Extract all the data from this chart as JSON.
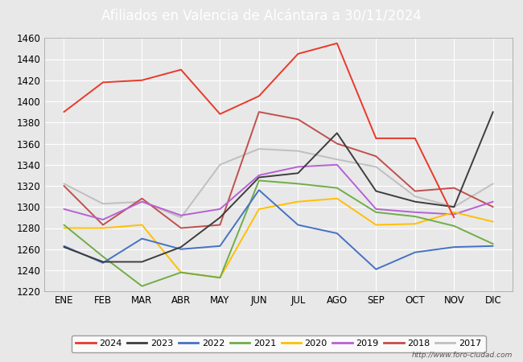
{
  "title": "Afiliados en Valencia de Alcántara a 30/11/2024",
  "title_color": "#ffffff",
  "title_bg_color": "#4472c4",
  "months": [
    "ENE",
    "FEB",
    "MAR",
    "ABR",
    "MAY",
    "JUN",
    "JUL",
    "AGO",
    "SEP",
    "OCT",
    "NOV",
    "DIC"
  ],
  "ylim": [
    1220,
    1460
  ],
  "yticks": [
    1220,
    1240,
    1260,
    1280,
    1300,
    1320,
    1340,
    1360,
    1380,
    1400,
    1420,
    1440,
    1460
  ],
  "series": {
    "2024": {
      "color": "#e8392a",
      "data": [
        1390,
        1418,
        1420,
        1430,
        1388,
        1405,
        1445,
        1455,
        1365,
        1365,
        1290,
        null
      ]
    },
    "2023": {
      "color": "#3d3d3d",
      "data": [
        1262,
        1248,
        1248,
        1262,
        1290,
        1328,
        1332,
        1370,
        1315,
        1305,
        1300,
        1390
      ]
    },
    "2022": {
      "color": "#4472c4",
      "data": [
        1263,
        1247,
        1270,
        1260,
        1263,
        1316,
        1283,
        1275,
        1241,
        1257,
        1262,
        1263
      ]
    },
    "2021": {
      "color": "#70ad47",
      "data": [
        1283,
        1253,
        1225,
        1238,
        1233,
        1325,
        1322,
        1318,
        1295,
        1291,
        1282,
        1265
      ]
    },
    "2020": {
      "color": "#ffc000",
      "data": [
        1280,
        1280,
        1283,
        1238,
        1233,
        1298,
        1305,
        1308,
        1283,
        1284,
        1295,
        1286
      ]
    },
    "2019": {
      "color": "#b661d5",
      "data": [
        1298,
        1288,
        1305,
        1292,
        1298,
        1330,
        1338,
        1340,
        1298,
        1295,
        1293,
        1305
      ]
    },
    "2018": {
      "color": "#c0504d",
      "data": [
        1320,
        1283,
        1308,
        1280,
        1283,
        1390,
        1383,
        1360,
        1348,
        1315,
        1318,
        1300
      ]
    },
    "2017": {
      "color": "#bfbfbf",
      "data": [
        1322,
        1303,
        1305,
        1290,
        1340,
        1355,
        1353,
        1345,
        1338,
        1310,
        1300,
        1322
      ]
    }
  },
  "legend_order": [
    "2024",
    "2023",
    "2022",
    "2021",
    "2020",
    "2019",
    "2018",
    "2017"
  ],
  "watermark": "http://www.foro-ciudad.com",
  "bg_color": "#e8e8e8",
  "plot_bg_color": "#e8e8e8",
  "grid_color": "#ffffff"
}
